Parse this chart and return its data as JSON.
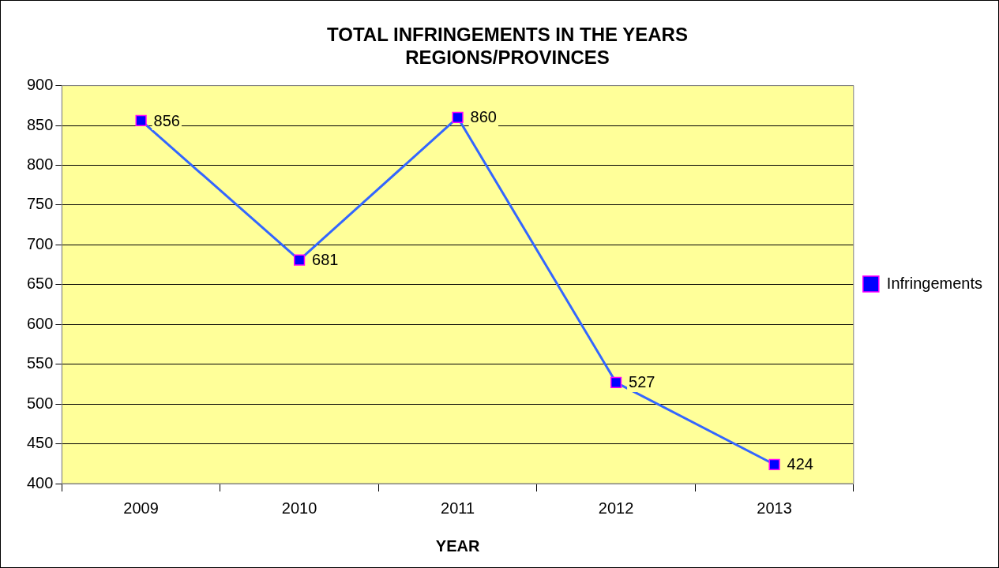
{
  "chart_data": {
    "type": "line",
    "title": "TOTAL INFRINGEMENTS IN THE YEARS\nREGIONS/PROVINCES",
    "xlabel": "YEAR",
    "categories": [
      "2009",
      "2010",
      "2011",
      "2012",
      "2013"
    ],
    "series": [
      {
        "name": "Infringements",
        "color": "#3366ff",
        "values": [
          856,
          681,
          860,
          527,
          424
        ]
      }
    ],
    "ylim": [
      400,
      900
    ],
    "yticks": [
      400,
      450,
      500,
      550,
      600,
      650,
      700,
      750,
      800,
      850,
      900
    ],
    "grid": "y",
    "legend": "right",
    "marker": "square",
    "line_style": "solid",
    "data_labels": true
  }
}
